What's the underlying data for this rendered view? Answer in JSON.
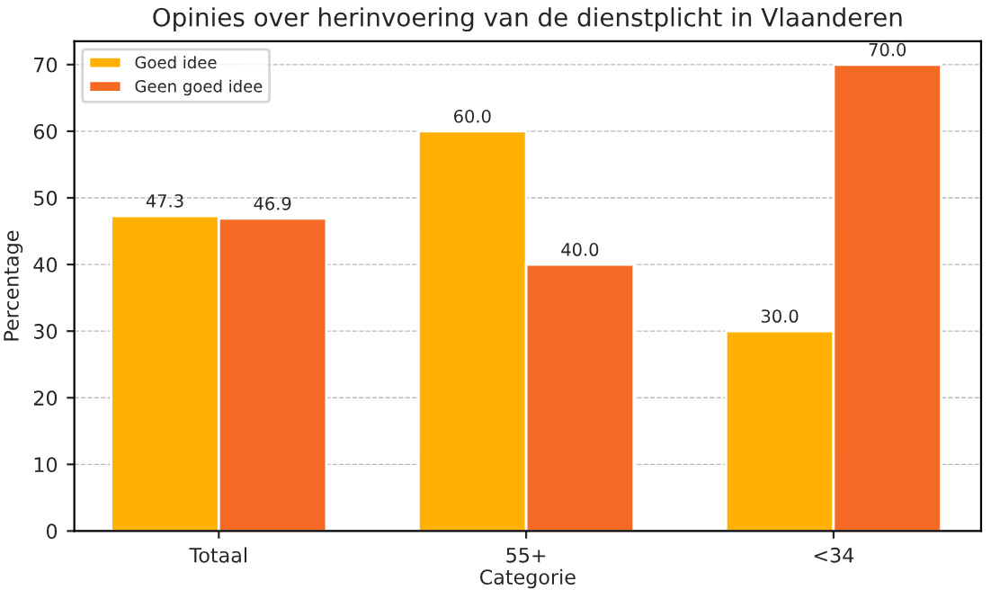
{
  "chart_data": {
    "type": "bar",
    "title": "Opinies over herinvoering van de dienstplicht in Vlaanderen",
    "xlabel": "Categorie",
    "ylabel": "Percentage",
    "categories": [
      "Totaal",
      "55+",
      "<34"
    ],
    "series": [
      {
        "name": "Goed idee",
        "color": "#ffb000",
        "values": [
          47.3,
          60.0,
          30.0
        ],
        "value_labels": [
          "47.3",
          "60.0",
          "30.0"
        ]
      },
      {
        "name": "Geen goed idee",
        "color": "#f46a25",
        "values": [
          46.9,
          40.0,
          70.0
        ],
        "value_labels": [
          "46.9",
          "40.0",
          "70.0"
        ]
      }
    ],
    "ylim": [
      0,
      73.5
    ],
    "yticks": [
      0,
      10,
      20,
      30,
      40,
      50,
      60,
      70
    ],
    "grid": "y",
    "legend": "top left"
  }
}
